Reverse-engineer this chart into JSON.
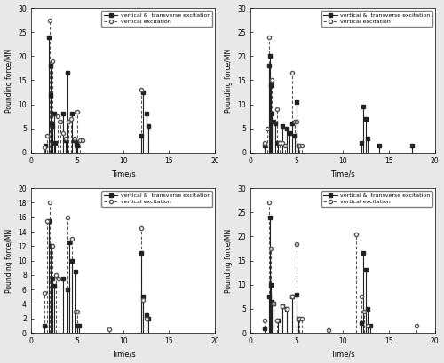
{
  "subplots": [
    {
      "ylabel": "Pounding force/MN",
      "xlabel": "Time/s",
      "ylim": [
        0,
        30
      ],
      "xlim": [
        0,
        20
      ],
      "yticks": [
        0,
        5,
        10,
        15,
        20,
        25,
        30
      ],
      "xticks": [
        0,
        5,
        10,
        15,
        20
      ],
      "solid_data": {
        "x": [
          1.6,
          2.0,
          2.1,
          2.15,
          2.25,
          2.35,
          2.5,
          2.6,
          3.5,
          3.8,
          4.0,
          4.5,
          4.7,
          4.9,
          5.05,
          12.0,
          12.2,
          12.5,
          12.7
        ],
        "y": [
          1.5,
          24.0,
          18.0,
          12.0,
          6.0,
          5.5,
          8.0,
          2.0,
          8.0,
          2.5,
          16.5,
          8.0,
          2.5,
          2.0,
          1.5,
          3.5,
          12.5,
          8.0,
          5.5
        ]
      },
      "dashed_data": {
        "x": [
          1.5,
          1.8,
          2.05,
          2.3,
          2.9,
          3.2,
          3.5,
          3.8,
          4.1,
          4.4,
          4.7,
          5.0,
          5.3,
          5.6,
          12.0
        ],
        "y": [
          1.0,
          3.5,
          27.5,
          19.0,
          7.5,
          6.5,
          4.0,
          3.0,
          6.5,
          7.0,
          3.0,
          8.5,
          2.5,
          2.5,
          13.0
        ]
      }
    },
    {
      "ylabel": "Pounding force/MN",
      "xlabel": "Time/s",
      "ylim": [
        0,
        30
      ],
      "xlim": [
        0,
        20
      ],
      "yticks": [
        0,
        5,
        10,
        15,
        20,
        25,
        30
      ],
      "xticks": [
        0,
        5,
        10,
        15,
        20
      ],
      "solid_data": {
        "x": [
          1.5,
          2.0,
          2.1,
          2.2,
          2.35,
          2.5,
          2.7,
          3.0,
          3.5,
          4.0,
          4.2,
          4.5,
          4.8,
          5.0,
          5.2,
          12.0,
          12.2,
          12.5,
          12.7,
          14.0,
          17.5
        ],
        "y": [
          1.5,
          18.0,
          20.0,
          14.0,
          8.0,
          6.5,
          6.0,
          2.0,
          5.5,
          5.0,
          4.0,
          6.0,
          3.5,
          10.5,
          1.5,
          2.0,
          9.5,
          7.0,
          3.0,
          1.5,
          1.5
        ]
      },
      "dashed_data": {
        "x": [
          1.5,
          1.8,
          2.05,
          2.3,
          2.9,
          3.2,
          3.5,
          3.8,
          4.5,
          4.8,
          5.0,
          5.3,
          5.6
        ],
        "y": [
          2.0,
          5.0,
          24.0,
          15.0,
          9.0,
          2.0,
          2.0,
          1.5,
          16.5,
          6.5,
          6.5,
          1.5,
          1.5
        ]
      }
    },
    {
      "ylabel": "Pounding force/MN",
      "xlabel": "Time/s",
      "ylim": [
        0,
        20
      ],
      "xlim": [
        0,
        20
      ],
      "yticks": [
        0,
        2,
        4,
        6,
        8,
        10,
        12,
        14,
        16,
        18,
        20
      ],
      "xticks": [
        0,
        5,
        10,
        15,
        20
      ],
      "solid_data": {
        "x": [
          1.5,
          2.0,
          2.15,
          2.3,
          2.5,
          3.5,
          4.0,
          4.2,
          4.5,
          4.8,
          5.0,
          5.2,
          12.0,
          12.2,
          12.5,
          12.7
        ],
        "y": [
          1.0,
          15.5,
          12.0,
          7.5,
          6.5,
          7.5,
          6.0,
          12.5,
          10.0,
          8.5,
          1.0,
          1.0,
          11.0,
          5.0,
          2.5,
          2.0
        ]
      },
      "dashed_data": {
        "x": [
          1.5,
          1.8,
          2.05,
          2.3,
          2.7,
          3.0,
          4.0,
          4.5,
          4.8,
          5.0,
          8.5,
          12.0,
          12.2,
          12.5
        ],
        "y": [
          5.5,
          15.5,
          18.0,
          12.0,
          8.0,
          7.5,
          16.0,
          13.0,
          3.0,
          3.0,
          0.5,
          14.5,
          4.5,
          2.0
        ]
      }
    },
    {
      "ylabel": "Pounding force/MN",
      "xlabel": "Time/s",
      "ylim": [
        0,
        30
      ],
      "xlim": [
        0,
        20
      ],
      "yticks": [
        0,
        5,
        10,
        15,
        20,
        25,
        30
      ],
      "xticks": [
        0,
        5,
        10,
        15,
        20
      ],
      "solid_data": {
        "x": [
          1.5,
          2.0,
          2.1,
          2.2,
          2.35,
          2.5,
          3.0,
          3.5,
          4.0,
          4.5,
          5.0,
          5.2,
          12.0,
          12.2,
          12.5,
          12.7,
          13.0
        ],
        "y": [
          1.0,
          7.5,
          24.0,
          10.0,
          6.5,
          6.0,
          2.5,
          5.5,
          5.0,
          7.5,
          8.0,
          3.0,
          2.0,
          16.5,
          13.0,
          5.0,
          1.5
        ]
      },
      "dashed_data": {
        "x": [
          1.5,
          2.0,
          2.2,
          2.5,
          2.9,
          3.5,
          4.0,
          4.5,
          5.0,
          5.3,
          5.6,
          8.5,
          11.5,
          12.0,
          12.3,
          12.7,
          18.0
        ],
        "y": [
          2.5,
          27.0,
          17.5,
          6.0,
          2.5,
          5.5,
          5.0,
          7.5,
          18.5,
          3.0,
          3.0,
          0.5,
          20.5,
          7.5,
          4.5,
          1.5,
          1.5
        ]
      }
    }
  ],
  "legend_solid_label": "vertical &  transverse excitation",
  "legend_dashed_label": "vertical excitation",
  "solid_color": "#222222",
  "dashed_color": "#555555",
  "bg_color": "#e8e8e8",
  "plot_bg_color": "#ffffff"
}
